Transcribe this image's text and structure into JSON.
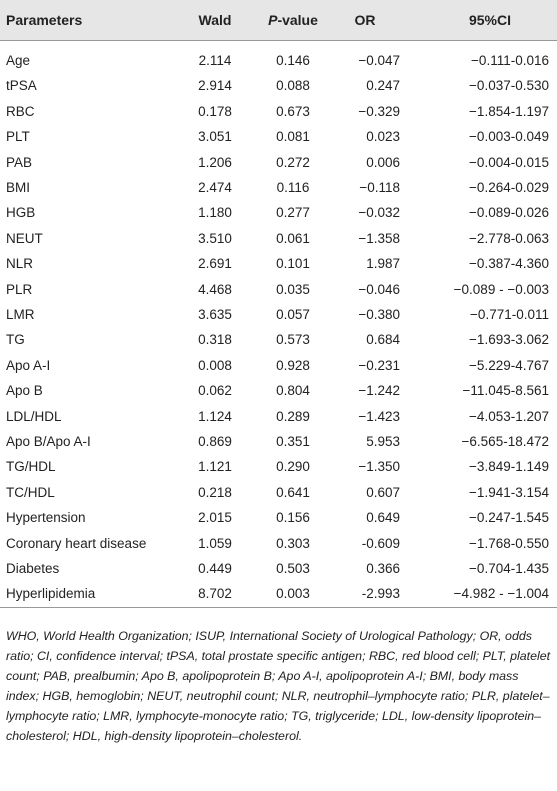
{
  "table": {
    "header": [
      "Parameters",
      "Wald",
      "P-value",
      "OR",
      "95%CI"
    ],
    "rows": [
      [
        "Age",
        "2.114",
        "0.146",
        "−0.047",
        "−0.111-0.016"
      ],
      [
        "tPSA",
        "2.914",
        "0.088",
        "0.247",
        "−0.037-0.530"
      ],
      [
        "RBC",
        "0.178",
        "0.673",
        "−0.329",
        "−1.854-1.197"
      ],
      [
        "PLT",
        "3.051",
        "0.081",
        "0.023",
        "−0.003-0.049"
      ],
      [
        "PAB",
        "1.206",
        "0.272",
        "0.006",
        "−0.004-0.015"
      ],
      [
        "BMI",
        "2.474",
        "0.116",
        "−0.118",
        "−0.264-0.029"
      ],
      [
        "HGB",
        "1.180",
        "0.277",
        "−0.032",
        "−0.089-0.026"
      ],
      [
        "NEUT",
        "3.510",
        "0.061",
        "−1.358",
        "−2.778-0.063"
      ],
      [
        "NLR",
        "2.691",
        "0.101",
        "1.987",
        "−0.387-4.360"
      ],
      [
        "PLR",
        "4.468",
        "0.035",
        "−0.046",
        "−0.089 - −0.003"
      ],
      [
        "LMR",
        "3.635",
        "0.057",
        "−0.380",
        "−0.771-0.011"
      ],
      [
        "TG",
        "0.318",
        "0.573",
        "0.684",
        "−1.693-3.062"
      ],
      [
        "Apo A-I",
        "0.008",
        "0.928",
        "−0.231",
        "−5.229-4.767"
      ],
      [
        "Apo B",
        "0.062",
        "0.804",
        "−1.242",
        "−11.045-8.561"
      ],
      [
        "LDL/HDL",
        "1.124",
        "0.289",
        "−1.423",
        "−4.053-1.207"
      ],
      [
        "Apo B/Apo A-I",
        "0.869",
        "0.351",
        "5.953",
        "−6.565-18.472"
      ],
      [
        "TG/HDL",
        "1.121",
        "0.290",
        "−1.350",
        "−3.849-1.149"
      ],
      [
        "TC/HDL",
        "0.218",
        "0.641",
        "0.607",
        "−1.941-3.154"
      ],
      [
        "Hypertension",
        "2.015",
        "0.156",
        "0.649",
        "−0.247-1.545"
      ],
      [
        "Coronary heart disease",
        "1.059",
        "0.303",
        "-0.609",
        "−1.768-0.550"
      ],
      [
        "Diabetes",
        "0.449",
        "0.503",
        "0.366",
        "−0.704-1.435"
      ],
      [
        "Hyperlipidemia",
        "8.702",
        "0.003",
        "-2.993",
        "−4.982 - −1.004"
      ]
    ],
    "footnote": "WHO, World Health Organization; ISUP, International Society of Urological Pathology; OR, odds ratio; CI, confidence interval; tPSA, total prostate specific antigen; RBC, red blood cell; PLT, platelet count; PAB, prealbumin; Apo B, apolipoprotein B; Apo A-I, apolipoprotein A-I; BMI, body mass index; HGB, hemoglobin; NEUT, neutrophil count; NLR, neutrophil–lymphocyte ratio; PLR, platelet–lymphocyte ratio; LMR, lymphocyte-monocyte ratio; TG, triglyceride; LDL, low-density lipoprotein–cholesterol; HDL, high-density lipoprotein–cholesterol."
  }
}
